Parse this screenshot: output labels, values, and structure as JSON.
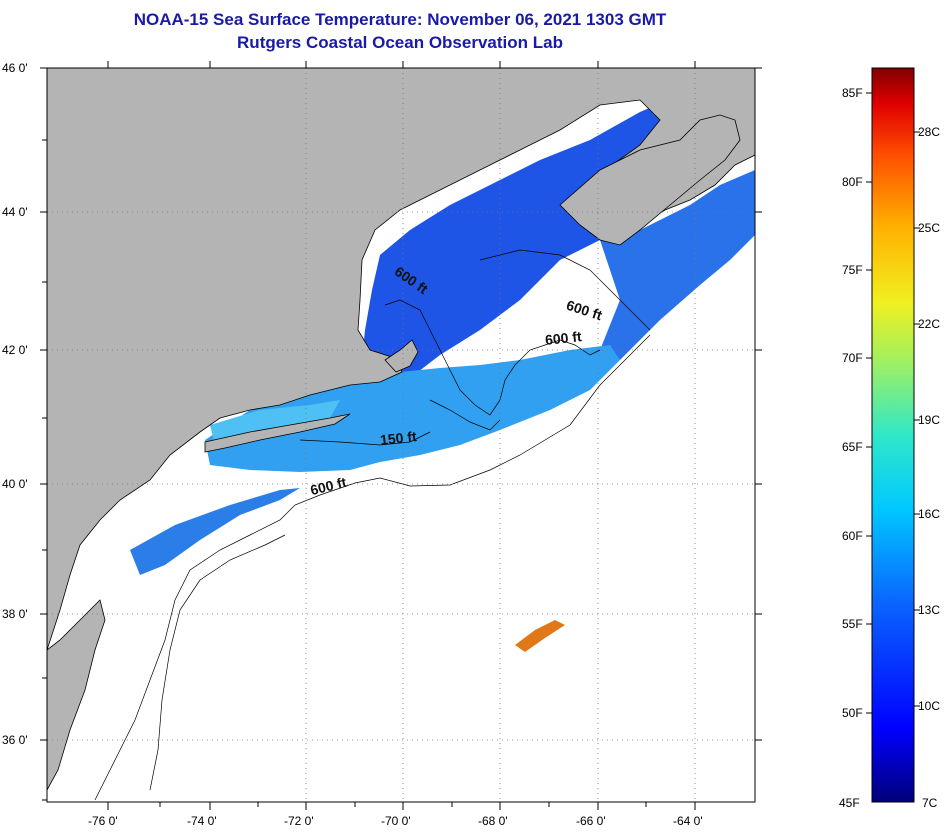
{
  "title_line1": "NOAA-15 Sea Surface Temperature:  November 06, 2021 1303 GMT",
  "title_line2": "Rutgers Coastal Ocean Observation Lab",
  "lat_labels": [
    "46 0'",
    "44 0'",
    "42 0'",
    "40 0'",
    "38 0'",
    "36 0'"
  ],
  "lon_labels": [
    "-76 0'",
    "-74 0'",
    "-72 0'",
    "-70 0'",
    "-68 0'",
    "-66 0'",
    "-64 0'"
  ],
  "isobath_labels": [
    "600 ft",
    "600 ft",
    "600 ft",
    "150 ft",
    "600 ft"
  ],
  "colorbar": {
    "fahrenheit": [
      "85F",
      "80F",
      "75F",
      "70F",
      "65F",
      "60F",
      "55F",
      "50F",
      "45F"
    ],
    "celsius": [
      "28C",
      "25C",
      "22C",
      "19C",
      "16C",
      "13C",
      "10C",
      "7C"
    ]
  },
  "colors": {
    "land": "#b4b4b4",
    "no_data": "#ffffff",
    "title": "#1a1aa8",
    "sst_cold": "#1e4fe0",
    "sst_mid": "#2aa8f0",
    "sst_warm": "#e07818"
  }
}
